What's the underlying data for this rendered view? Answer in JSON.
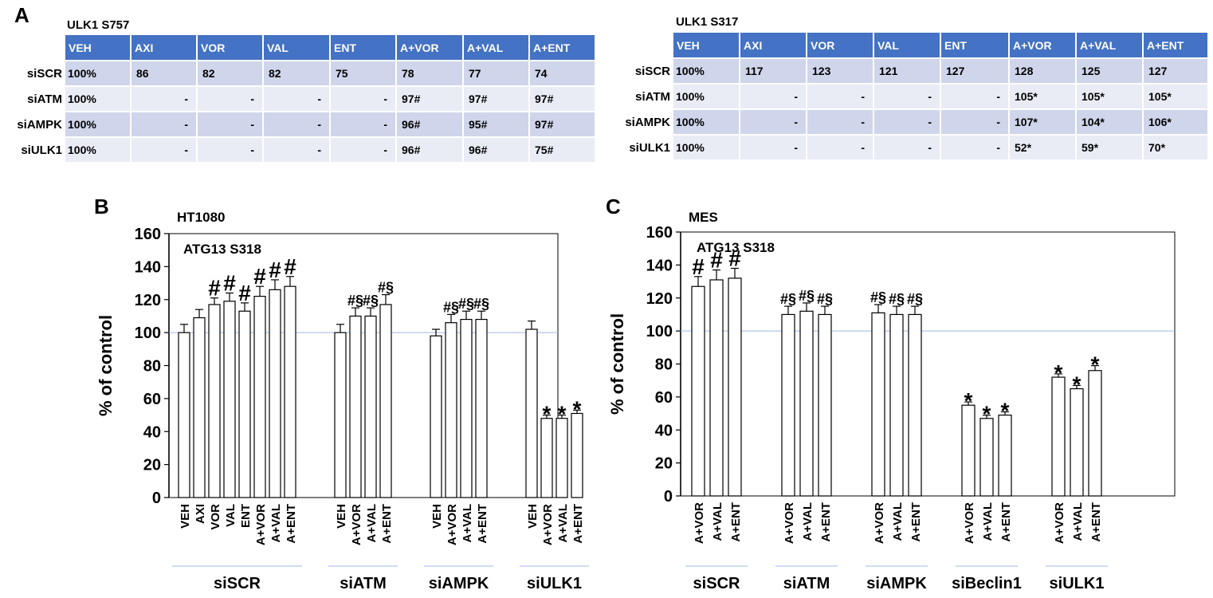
{
  "panels": {
    "a": "A",
    "b": "B",
    "c": "C"
  },
  "tables": [
    {
      "title": "ULK1 S757",
      "columns": [
        "VEH",
        "AXI",
        "VOR",
        "VAL",
        "ENT",
        "A+VOR",
        "A+VAL",
        "A+ENT"
      ],
      "rows": [
        {
          "label": "siSCR",
          "values": [
            "100%",
            "86",
            "82",
            "82",
            "75",
            "78",
            "77",
            "74"
          ]
        },
        {
          "label": "siATM",
          "values": [
            "100%",
            "-",
            "-",
            "-",
            "-",
            "97#",
            "97#",
            "97#"
          ]
        },
        {
          "label": "siAMPK",
          "values": [
            "100%",
            "-",
            "-",
            "-",
            "-",
            "96#",
            "95#",
            "97#"
          ]
        },
        {
          "label": "siULK1",
          "values": [
            "100%",
            "-",
            "-",
            "-",
            "-",
            "96#",
            "96#",
            "75#"
          ]
        }
      ]
    },
    {
      "title": "ULK1 S317",
      "columns": [
        "VEH",
        "AXI",
        "VOR",
        "VAL",
        "ENT",
        "A+VOR",
        "A+VAL",
        "A+ENT"
      ],
      "rows": [
        {
          "label": "siSCR",
          "values": [
            "100%",
            "117",
            "123",
            "121",
            "127",
            "128",
            "125",
            "127"
          ]
        },
        {
          "label": "siATM",
          "values": [
            "100%",
            "-",
            "-",
            "-",
            "-",
            "105*",
            "105*",
            "105*"
          ]
        },
        {
          "label": "siAMPK",
          "values": [
            "100%",
            "-",
            "-",
            "-",
            "-",
            "107*",
            "104*",
            "106*"
          ]
        },
        {
          "label": "siULK1",
          "values": [
            "100%",
            "-",
            "-",
            "-",
            "-",
            "52*",
            "59*",
            "70*"
          ]
        }
      ]
    }
  ],
  "chart_data": [
    {
      "type": "bar",
      "title": "HT1080",
      "subtitle": "ATG13 S318",
      "ylabel": "% of control",
      "ylim": [
        0,
        160
      ],
      "yticks": [
        0,
        20,
        40,
        60,
        80,
        100,
        120,
        140,
        160
      ],
      "reference_line": 100,
      "groups": [
        {
          "name": "siSCR",
          "bars": [
            {
              "label": "VEH",
              "value": 100,
              "err": 5,
              "mark": ""
            },
            {
              "label": "AXI",
              "value": 109,
              "err": 5,
              "mark": ""
            },
            {
              "label": "VOR",
              "value": 117,
              "err": 4,
              "mark": "#"
            },
            {
              "label": "VAL",
              "value": 119,
              "err": 5,
              "mark": "#"
            },
            {
              "label": "ENT",
              "value": 113,
              "err": 5,
              "mark": "#"
            },
            {
              "label": "A+VOR",
              "value": 122,
              "err": 6,
              "mark": "#"
            },
            {
              "label": "A+VAL",
              "value": 126,
              "err": 6,
              "mark": "#"
            },
            {
              "label": "A+ENT",
              "value": 128,
              "err": 6,
              "mark": "#"
            }
          ]
        },
        {
          "name": "siATM",
          "bars": [
            {
              "label": "VEH",
              "value": 100,
              "err": 5,
              "mark": ""
            },
            {
              "label": "A+VOR",
              "value": 110,
              "err": 5,
              "mark": "#§"
            },
            {
              "label": "A+VAL",
              "value": 110,
              "err": 5,
              "mark": "#§"
            },
            {
              "label": "A+ENT",
              "value": 117,
              "err": 6,
              "mark": "#§"
            }
          ]
        },
        {
          "name": "siAMPK",
          "bars": [
            {
              "label": "VEH",
              "value": 98,
              "err": 4,
              "mark": ""
            },
            {
              "label": "A+VOR",
              "value": 106,
              "err": 5,
              "mark": "#§"
            },
            {
              "label": "A+VAL",
              "value": 108,
              "err": 5,
              "mark": "#§"
            },
            {
              "label": "A+ENT",
              "value": 108,
              "err": 5,
              "mark": "#§"
            }
          ]
        },
        {
          "name": "siULK1",
          "bars": [
            {
              "label": "VEH",
              "value": 102,
              "err": 5,
              "mark": ""
            },
            {
              "label": "A+VOR",
              "value": 48,
              "err": 2,
              "mark": "*"
            },
            {
              "label": "A+VAL",
              "value": 48,
              "err": 2,
              "mark": "*"
            },
            {
              "label": "A+ENT",
              "value": 51,
              "err": 2,
              "mark": "*"
            }
          ]
        }
      ]
    },
    {
      "type": "bar",
      "title": "MES",
      "subtitle": "ATG13 S318",
      "ylabel": "% of control",
      "ylim": [
        0,
        160
      ],
      "yticks": [
        0,
        20,
        40,
        60,
        80,
        100,
        120,
        140,
        160
      ],
      "reference_line": 100,
      "groups": [
        {
          "name": "siSCR",
          "bars": [
            {
              "label": "A+VOR",
              "value": 127,
              "err": 6,
              "mark": "#"
            },
            {
              "label": "A+VAL",
              "value": 131,
              "err": 6,
              "mark": "#"
            },
            {
              "label": "A+ENT",
              "value": 132,
              "err": 6,
              "mark": "#"
            }
          ]
        },
        {
          "name": "siATM",
          "bars": [
            {
              "label": "A+VOR",
              "value": 110,
              "err": 5,
              "mark": "#§"
            },
            {
              "label": "A+VAL",
              "value": 112,
              "err": 5,
              "mark": "#§"
            },
            {
              "label": "A+ENT",
              "value": 110,
              "err": 5,
              "mark": "#§"
            }
          ]
        },
        {
          "name": "siAMPK",
          "bars": [
            {
              "label": "A+VOR",
              "value": 111,
              "err": 5,
              "mark": "#§"
            },
            {
              "label": "A+VAL",
              "value": 110,
              "err": 5,
              "mark": "#§"
            },
            {
              "label": "A+ENT",
              "value": 110,
              "err": 5,
              "mark": "#§"
            }
          ]
        },
        {
          "name": "siBeclin1",
          "bars": [
            {
              "label": "A+VOR",
              "value": 55,
              "err": 2,
              "mark": "*"
            },
            {
              "label": "A+VAL",
              "value": 47,
              "err": 2,
              "mark": "*"
            },
            {
              "label": "A+ENT",
              "value": 49,
              "err": 2,
              "mark": "*"
            }
          ]
        },
        {
          "name": "siULK1",
          "bars": [
            {
              "label": "A+VOR",
              "value": 72,
              "err": 2,
              "mark": "*"
            },
            {
              "label": "A+VAL",
              "value": 65,
              "err": 2,
              "mark": "*"
            },
            {
              "label": "A+ENT",
              "value": 76,
              "err": 3,
              "mark": "*"
            }
          ]
        }
      ]
    }
  ]
}
